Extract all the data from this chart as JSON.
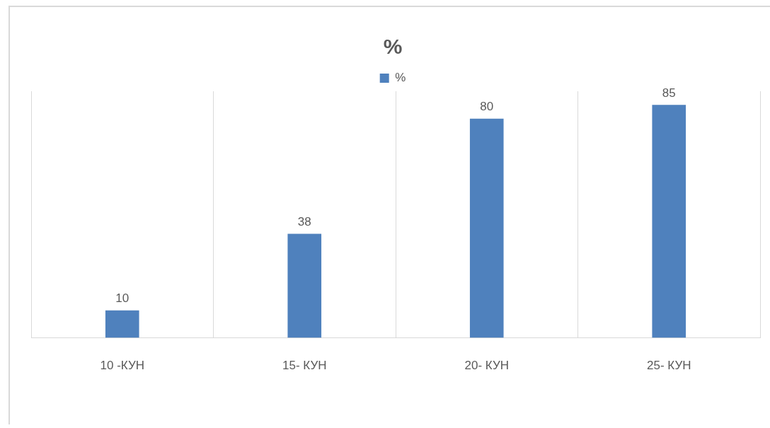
{
  "chart_data": {
    "type": "bar",
    "title": "%",
    "categories": [
      "10 -КУН",
      "15- КУН",
      "20- КУН",
      "25- КУН"
    ],
    "series": [
      {
        "name": "%",
        "color": "#4f81bd",
        "values": [
          10,
          38,
          80,
          85
        ]
      }
    ],
    "ylim": [
      0,
      90
    ],
    "tick_labels": "x",
    "grid": "x",
    "legend": "top",
    "data_labels": true
  }
}
